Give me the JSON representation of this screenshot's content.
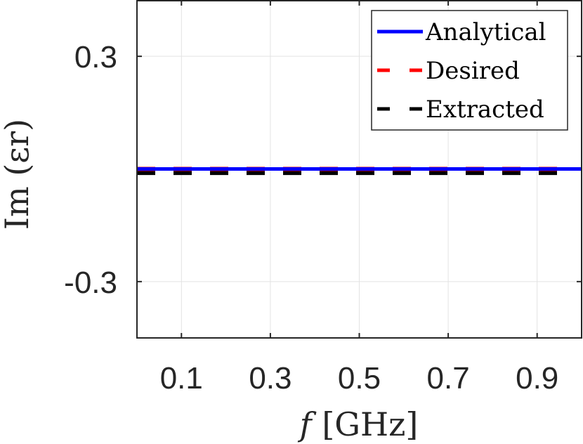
{
  "chart_data": {
    "type": "line",
    "x": [
      0.0,
      1.0
    ],
    "xlim": [
      0.0,
      1.0
    ],
    "ylim": [
      -0.45,
      0.45
    ],
    "xticks": [
      0.1,
      0.3,
      0.5,
      0.7,
      0.9
    ],
    "xtick_labels": [
      "0.1",
      "0.3",
      "0.5",
      "0.7",
      "0.9"
    ],
    "yticks": [
      -0.3,
      0.3
    ],
    "ytick_labels": [
      "-0.3",
      "0.3"
    ],
    "xlabel": "f [GHz]",
    "ylabel": "Im (εr)",
    "grid": true,
    "legend_position": "top-right",
    "series": [
      {
        "name": "Analytical",
        "x": [
          0.0,
          1.0
        ],
        "values": [
          0.0,
          0.0
        ],
        "color": "#0000ff",
        "style": "solid"
      },
      {
        "name": "Desired",
        "x": [
          0.0,
          0.95
        ],
        "values": [
          0.0,
          0.0
        ],
        "color": "#ff0000",
        "style": "dashed"
      },
      {
        "name": "Extracted",
        "x": [
          0.0,
          0.95
        ],
        "values": [
          -0.003,
          -0.003
        ],
        "color": "#000000",
        "style": "dashed"
      }
    ]
  }
}
